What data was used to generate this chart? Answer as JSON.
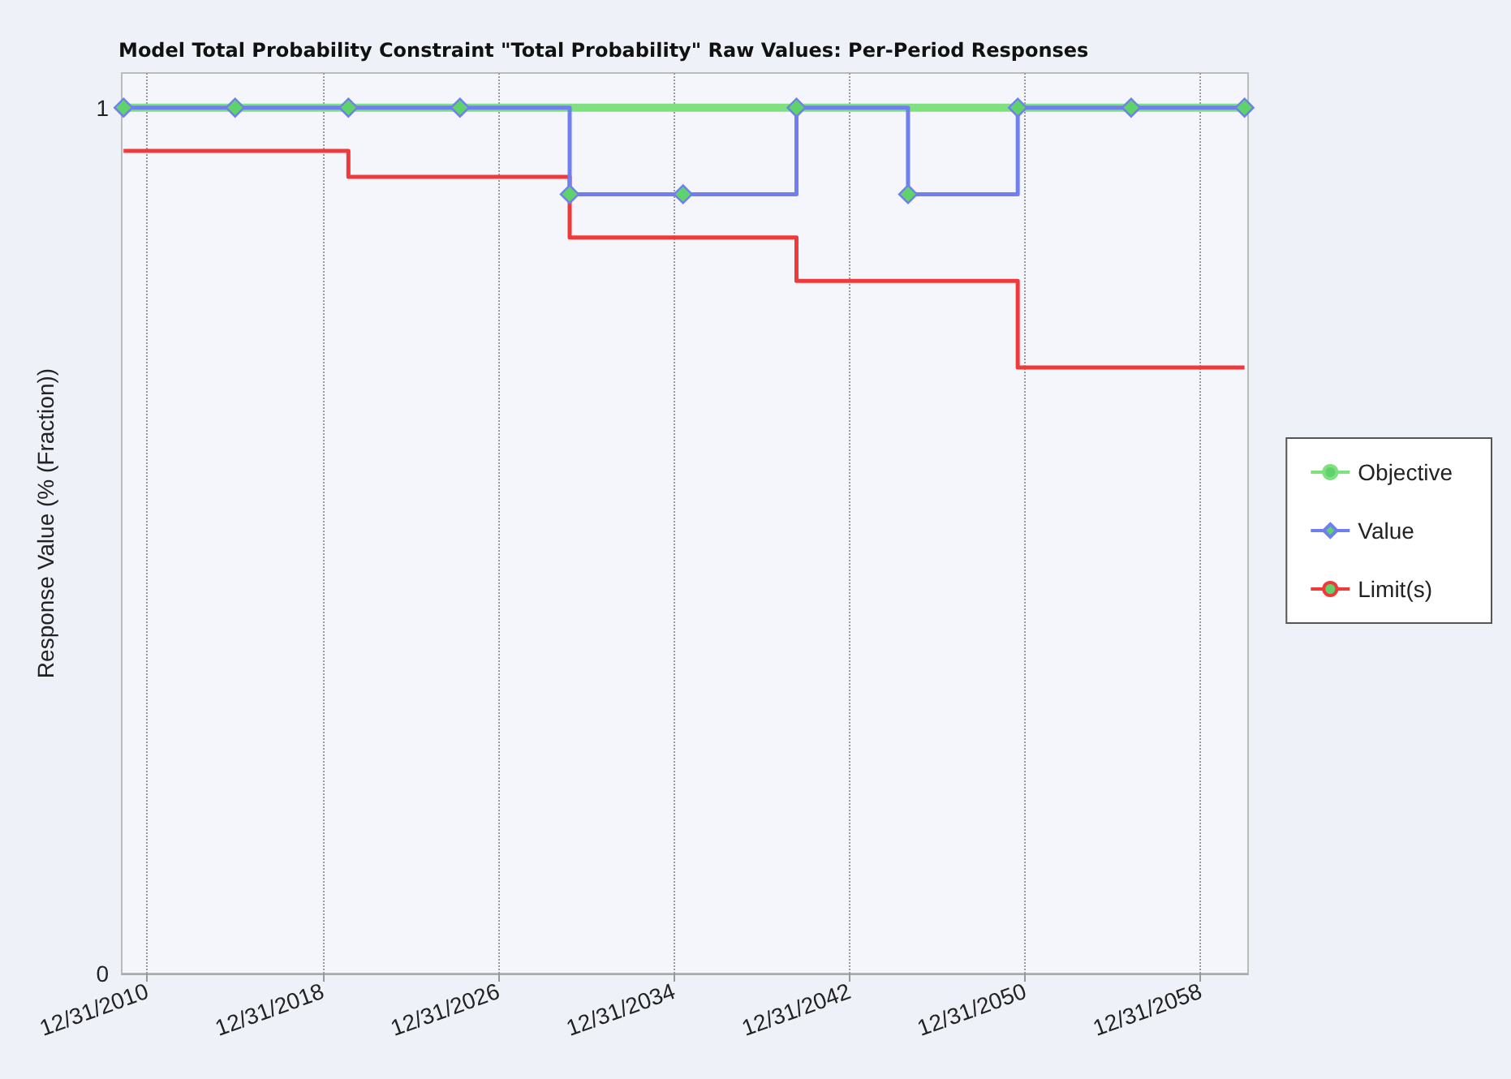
{
  "chart_data": {
    "type": "step",
    "title": "Model Total Probability Constraint \"Total Probability\" Raw Values: Per-Period Responses",
    "ylabel": "Response Value (% (Fraction))",
    "x": [
      "2009-12",
      "2015-01",
      "2020-03",
      "2025-04",
      "2030-04",
      "2035-06",
      "2040-08",
      "2045-09",
      "2050-09",
      "2055-11",
      "2061-01"
    ],
    "series": [
      {
        "name": "Objective",
        "color": "#7ee07e",
        "marker": "none",
        "values": [
          1,
          1,
          1,
          1,
          1,
          1,
          1,
          1,
          1,
          1,
          1
        ]
      },
      {
        "name": "Value",
        "color": "#6f7ff0",
        "marker": "diamond",
        "values": [
          1,
          1,
          1,
          1,
          0.9,
          0.9,
          1,
          0.9,
          1,
          1,
          1
        ]
      },
      {
        "name": "Limit(s)",
        "color": "#f03a3a",
        "marker": "none",
        "values": [
          0.95,
          0.95,
          0.92,
          0.92,
          0.85,
          0.85,
          0.8,
          0.8,
          0.7,
          0.7,
          0.7
        ]
      }
    ],
    "xlim": [
      "2009-11",
      "2061-03"
    ],
    "xticks": [
      {
        "value": "2010-12-31",
        "label": "12/31/2010"
      },
      {
        "value": "2018-12-31",
        "label": "12/31/2018"
      },
      {
        "value": "2026-12-31",
        "label": "12/31/2026"
      },
      {
        "value": "2034-12-31",
        "label": "12/31/2034"
      },
      {
        "value": "2042-12-31",
        "label": "12/31/2042"
      },
      {
        "value": "2050-12-31",
        "label": "12/31/2050"
      },
      {
        "value": "2058-12-31",
        "label": "12/31/2058"
      }
    ],
    "ylim": [
      0,
      1.04
    ],
    "yticks": [
      0,
      1
    ],
    "grid": "x",
    "legend": "right",
    "line_style": "solid"
  }
}
